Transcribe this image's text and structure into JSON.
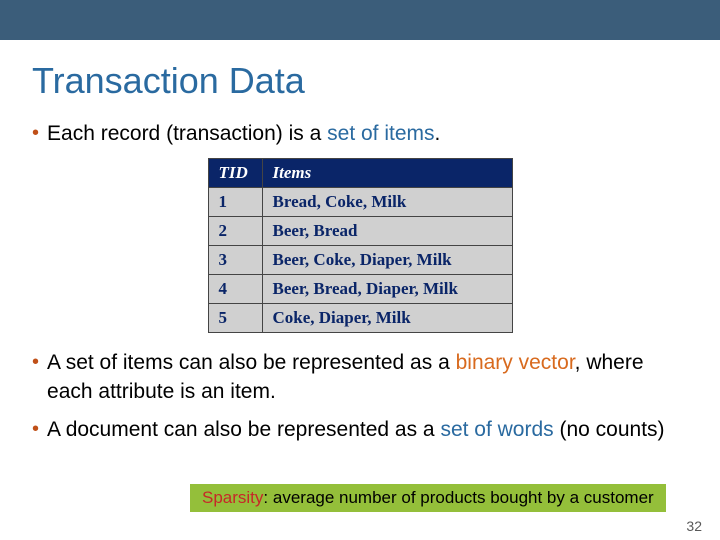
{
  "slide": {
    "title": "Transaction Data",
    "page_number": "32"
  },
  "bullets": {
    "b1_pre": "Each record (transaction) is a ",
    "b1_hl": "set of items",
    "b1_post": ".",
    "b2_pre": "A set of items can also be represented as a ",
    "b2_hl": "binary vector",
    "b2_post": ", where each attribute is an item.",
    "b3_pre": "A document can also be represented as a ",
    "b3_hl": "set of words",
    "b3_post": " (no counts)"
  },
  "table": {
    "header_tid": "TID",
    "header_items": "Items",
    "rows": [
      {
        "tid": "1",
        "items": "Bread, Coke, Milk"
      },
      {
        "tid": "2",
        "items": "Beer, Bread"
      },
      {
        "tid": "3",
        "items": "Beer, Coke, Diaper, Milk"
      },
      {
        "tid": "4",
        "items": "Beer, Bread, Diaper, Milk"
      },
      {
        "tid": "5",
        "items": "Coke, Diaper, Milk"
      }
    ]
  },
  "callout": {
    "label": "Sparsity",
    "text": ": average number of products bought by a customer"
  },
  "colors": {
    "top_bar": "#3b5d7a",
    "title": "#2a6aa0",
    "bullet_dot": "#c05018",
    "highlight_blue": "#2a6aa0",
    "highlight_orange": "#d86a1e",
    "table_header_bg": "#0a2568",
    "table_header_fg": "#ffffff",
    "table_cell_bg": "#d0d0d0",
    "table_cell_fg": "#0a2568",
    "callout_bg": "#94bf3a",
    "callout_sparsity": "#c62828",
    "page_num": "#595959"
  }
}
